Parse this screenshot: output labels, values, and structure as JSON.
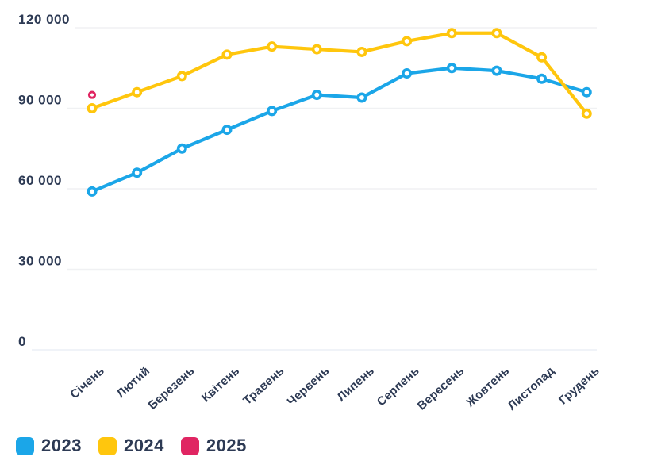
{
  "chart_data": {
    "type": "line",
    "x_categories": [
      "Січень",
      "Лютий",
      "Березень",
      "Квітень",
      "Травень",
      "Червень",
      "Липень",
      "Серпень",
      "Вересень",
      "Жовтень",
      "Листопад",
      "Грудень"
    ],
    "series": [
      {
        "name": "2023",
        "color": "#1BA6E8",
        "values": [
          59000,
          66000,
          75000,
          82000,
          89000,
          95000,
          94000,
          103000,
          105000,
          104000,
          101000,
          96000
        ]
      },
      {
        "name": "2024",
        "color": "#FFC60D",
        "values": [
          90000,
          96000,
          102000,
          110000,
          113000,
          112000,
          111000,
          115000,
          118000,
          118000,
          109000,
          88000
        ]
      },
      {
        "name": "2025",
        "color": "#E02562",
        "values": [
          95000,
          null,
          null,
          null,
          null,
          null,
          null,
          null,
          null,
          null,
          null,
          null
        ]
      }
    ],
    "y_ticks": [
      {
        "value": 120000,
        "label": "120 000"
      },
      {
        "value": 90000,
        "label": "90 000"
      },
      {
        "value": 60000,
        "label": "60 000"
      },
      {
        "value": 30000,
        "label": "30 000"
      },
      {
        "value": 0,
        "label": "0"
      }
    ],
    "ylim": [
      0,
      120000
    ],
    "grid": true,
    "legend_position": "bottom-left",
    "marker_style": "open-circle",
    "text_color": "#2D3A54",
    "grid_color": "#F0F1F3",
    "background": "#FFFFFF"
  }
}
